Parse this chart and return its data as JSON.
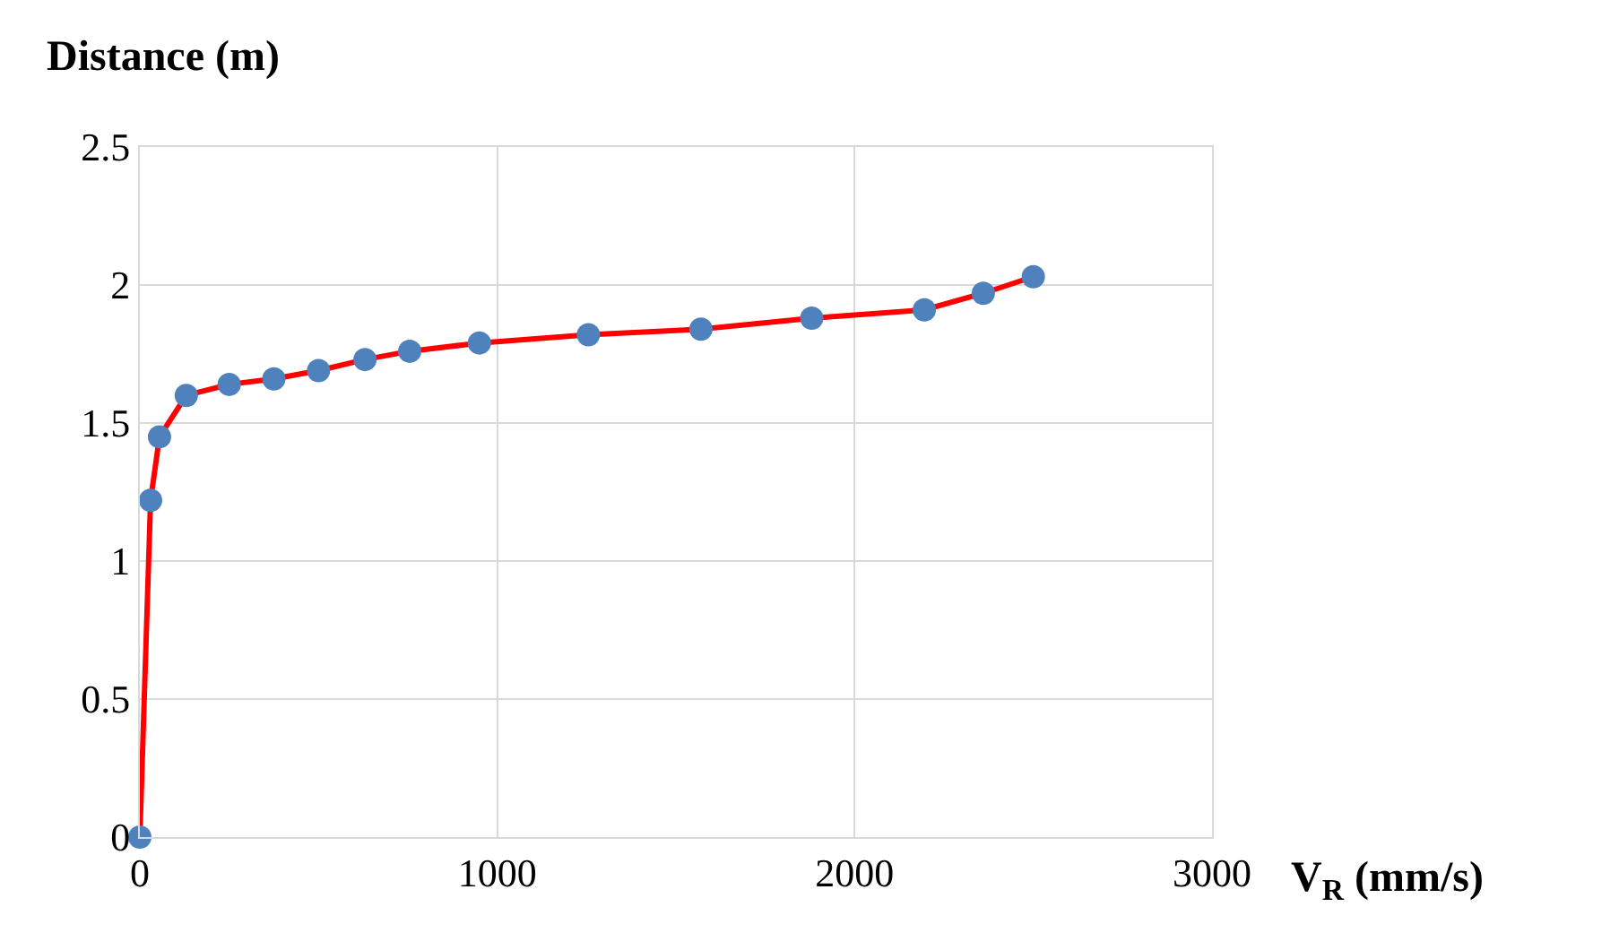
{
  "chart_data": {
    "type": "line",
    "xlabel": "V$_{R}$ (mm/s)",
    "ylabel": "Distance (m)",
    "x": [
      0,
      30,
      55,
      130,
      250,
      375,
      500,
      630,
      755,
      950,
      1255,
      1570,
      1880,
      2195,
      2360,
      2500
    ],
    "series": [
      {
        "color": "#ff0000",
        "colors": [
          "#4f81bd",
          "#4f81bd",
          "#4f81bd",
          "#4f81bd",
          "#4f81bd",
          "#4f81bd",
          "#4f81bd",
          "#4f81bd",
          "#4f81bd",
          "#4f81bd",
          "#4f81bd",
          "#4f81bd",
          "#4f81bd",
          "#4f81bd",
          "#4f81bd",
          "#4f81bd"
        ],
        "values": [
          0,
          1.22,
          1.45,
          1.6,
          1.64,
          1.66,
          1.69,
          1.73,
          1.76,
          1.79,
          1.82,
          1.84,
          1.88,
          1.91,
          1.97,
          2.03
        ]
      }
    ],
    "marker": "circle",
    "line_style": "solid",
    "xlim": [
      0,
      3000
    ],
    "xticks": [
      0,
      1000,
      2000,
      3000
    ],
    "ylim": [
      0,
      2.5
    ],
    "yticks": [
      0,
      0.5,
      1,
      1.5,
      2,
      2.5
    ],
    "grid": true
  }
}
